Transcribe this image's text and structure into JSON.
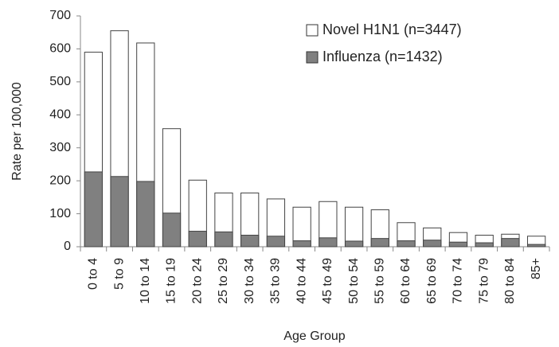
{
  "chart_data": {
    "type": "bar",
    "x_label": "Age Group",
    "y_label": "Rate per 100,000",
    "categories": [
      "0 to 4",
      "5 to 9",
      "10 to 14",
      "15 to 19",
      "20 to 24",
      "25 to 29",
      "30 to 34",
      "35 to 39",
      "40 to 44",
      "45 to 49",
      "50 to 54",
      "55 to 59",
      "60 to 64",
      "65 to 69",
      "70 to 74",
      "75 to 79",
      "80 to 84",
      "85+"
    ],
    "series": [
      {
        "name": "Novel H1N1 (n=3447)",
        "color": "#ffffff",
        "values": [
          590,
          655,
          618,
          358,
          202,
          163,
          163,
          145,
          120,
          137,
          120,
          112,
          73,
          57,
          43,
          35,
          38,
          32
        ]
      },
      {
        "name": "Influenza (n=1432)",
        "color": "#808080",
        "values": [
          227,
          213,
          198,
          102,
          47,
          45,
          35,
          32,
          18,
          27,
          17,
          25,
          18,
          20,
          14,
          12,
          25,
          7
        ]
      }
    ],
    "ylim": [
      0,
      700
    ],
    "yticks": [
      0,
      100,
      200,
      300,
      400,
      500,
      600,
      700
    ],
    "grid": false,
    "legend": "upper right"
  }
}
